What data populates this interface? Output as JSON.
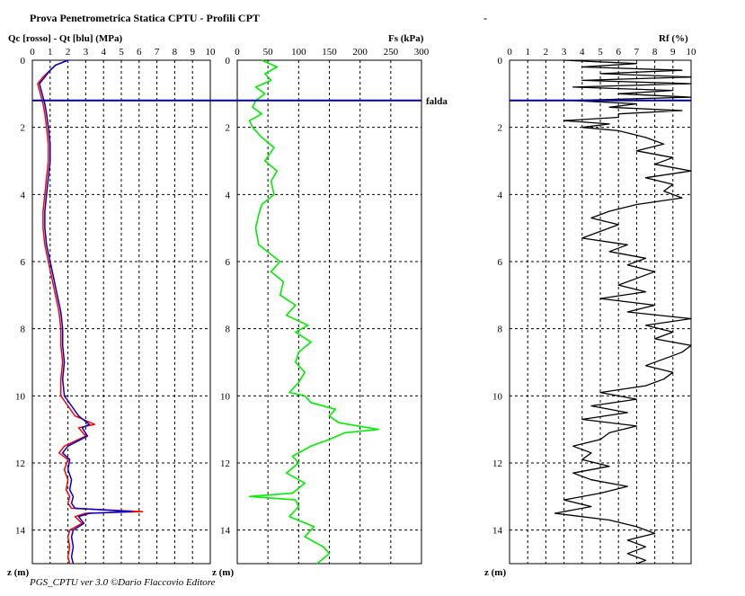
{
  "title": "Prova Penetrometrica Statica CPTU   - Profili CPT",
  "title_dash": "-",
  "footer": "PGS_CPTU ver 3.0 ©Dario Flaccovio Editore",
  "falda_label": "falda",
  "falda_depth": 1.2,
  "colors": {
    "qc": "#ff0000",
    "qt": "#0000cc",
    "fs": "#00ee00",
    "rf": "#000000",
    "falda": "#0000aa"
  },
  "chart_data": [
    {
      "type": "line",
      "title": "Qc [rosso] - Qt [blu] (MPa)",
      "xlabel": "Qc [rosso] - Qt [blu] (MPa)",
      "ylabel": "z (m)",
      "x_ticks": [
        "0",
        "1",
        "2",
        "3",
        "4",
        "5",
        "6",
        "7",
        "8",
        "9",
        "10"
      ],
      "y_ticks": [
        "0",
        "2",
        "4",
        "6",
        "8",
        "10",
        "12",
        "14"
      ],
      "xlim": [
        0,
        10
      ],
      "ylim": [
        15,
        0
      ],
      "grid": true,
      "series": [
        {
          "name": "Qc [rosso]",
          "depth": [
            0,
            0.15,
            0.3,
            0.5,
            0.7,
            0.9,
            1.1,
            1.3,
            1.6,
            2.0,
            2.5,
            3.0,
            3.5,
            4.0,
            4.5,
            5.0,
            5.5,
            6.0,
            6.5,
            7.0,
            7.5,
            8.0,
            8.5,
            9.0,
            9.5,
            10.0,
            10.3,
            10.6,
            10.85,
            10.95,
            11.2,
            11.5,
            11.7,
            11.9,
            12.2,
            12.5,
            12.8,
            13.0,
            13.2,
            13.35,
            13.45,
            13.5,
            13.6,
            13.8,
            14.0,
            14.2,
            14.5,
            14.8,
            15.0
          ],
          "values": [
            2.0,
            1.3,
            1.0,
            0.6,
            0.3,
            0.4,
            0.5,
            0.6,
            0.7,
            0.8,
            0.9,
            0.9,
            0.8,
            0.7,
            0.6,
            0.6,
            0.7,
            0.9,
            1.1,
            1.3,
            1.5,
            1.6,
            1.6,
            1.7,
            1.6,
            1.6,
            2.0,
            2.4,
            3.5,
            2.6,
            3.0,
            1.8,
            1.5,
            2.0,
            1.8,
            2.0,
            1.9,
            2.1,
            2.0,
            2.2,
            6.2,
            3.0,
            2.4,
            2.8,
            2.1,
            2.0,
            2.1,
            2.0,
            2.1
          ]
        },
        {
          "name": "Qt [blu]",
          "depth": [
            0,
            0.15,
            0.3,
            0.5,
            0.7,
            0.9,
            1.1,
            1.3,
            1.6,
            2.0,
            2.5,
            3.0,
            3.5,
            4.0,
            4.5,
            5.0,
            5.5,
            6.0,
            6.5,
            7.0,
            7.5,
            8.0,
            8.5,
            9.0,
            9.5,
            10.0,
            10.3,
            10.6,
            10.85,
            10.95,
            11.2,
            11.5,
            11.7,
            11.9,
            12.2,
            12.5,
            12.8,
            13.0,
            13.2,
            13.35,
            13.45,
            13.5,
            13.6,
            13.8,
            14.0,
            14.2,
            14.5,
            14.8,
            15.0
          ],
          "values": [
            2.0,
            1.3,
            1.0,
            0.7,
            0.4,
            0.5,
            0.6,
            0.7,
            0.8,
            0.9,
            1.0,
            1.0,
            0.9,
            0.8,
            0.7,
            0.7,
            0.8,
            1.0,
            1.2,
            1.4,
            1.6,
            1.7,
            1.7,
            1.8,
            1.7,
            1.8,
            2.2,
            2.6,
            3.2,
            2.8,
            3.1,
            2.0,
            1.7,
            2.1,
            2.0,
            2.2,
            2.1,
            2.3,
            2.2,
            2.4,
            5.6,
            3.2,
            2.6,
            2.9,
            2.3,
            2.2,
            2.3,
            2.2,
            2.3
          ]
        }
      ]
    },
    {
      "type": "line",
      "title": "Fs (kPa)",
      "xlabel": "Fs (kPa)",
      "ylabel": "z (m)",
      "x_ticks": [
        "0",
        "50",
        "100",
        "150",
        "200",
        "250",
        "300"
      ],
      "y_ticks": [
        "0",
        "2",
        "4",
        "6",
        "8",
        "10",
        "12",
        "14"
      ],
      "xlim": [
        0,
        300
      ],
      "ylim": [
        15,
        0
      ],
      "grid": true,
      "series": [
        {
          "name": "Fs",
          "depth": [
            0,
            0.2,
            0.4,
            0.6,
            0.8,
            1.0,
            1.2,
            1.4,
            1.6,
            1.8,
            2.0,
            2.3,
            2.6,
            3.0,
            3.3,
            3.6,
            4.0,
            4.3,
            4.6,
            5.0,
            5.5,
            6.0,
            6.3,
            6.6,
            7.0,
            7.3,
            7.6,
            7.9,
            8.1,
            8.4,
            8.7,
            9.0,
            9.3,
            9.6,
            9.9,
            10.0,
            10.2,
            10.4,
            10.6,
            10.8,
            11.0,
            11.1,
            11.3,
            11.5,
            11.8,
            12.0,
            12.3,
            12.6,
            12.9,
            13.0,
            13.1,
            13.3,
            13.6,
            13.9,
            14.2,
            14.5,
            14.7,
            15.0
          ],
          "values": [
            40,
            65,
            45,
            55,
            30,
            45,
            30,
            25,
            40,
            20,
            25,
            40,
            60,
            45,
            65,
            55,
            60,
            40,
            35,
            30,
            35,
            70,
            55,
            75,
            70,
            95,
            80,
            115,
            95,
            120,
            100,
            95,
            110,
            100,
            85,
            110,
            120,
            160,
            150,
            165,
            230,
            175,
            150,
            120,
            90,
            100,
            80,
            110,
            90,
            20,
            95,
            100,
            85,
            125,
            110,
            140,
            150,
            130
          ]
        }
      ]
    },
    {
      "type": "line",
      "title": "Rf (%)",
      "xlabel": "Rf (%)",
      "ylabel": "z (m)",
      "x_ticks": [
        "0",
        "1",
        "2",
        "3",
        "4",
        "5",
        "6",
        "7",
        "8",
        "9",
        "10"
      ],
      "y_ticks": [
        "0",
        "2",
        "4",
        "6",
        "8",
        "10",
        "12",
        "14"
      ],
      "xlim": [
        0,
        10
      ],
      "ylim": [
        15,
        0
      ],
      "grid": true,
      "series": [
        {
          "name": "Rf",
          "depth": [
            0,
            0.1,
            0.2,
            0.3,
            0.4,
            0.5,
            0.6,
            0.7,
            0.8,
            0.9,
            1.0,
            1.1,
            1.2,
            1.3,
            1.4,
            1.5,
            1.6,
            1.7,
            1.8,
            1.9,
            2.0,
            2.1,
            2.3,
            2.5,
            2.7,
            2.9,
            3.1,
            3.3,
            3.5,
            3.7,
            3.9,
            4.1,
            4.3,
            4.5,
            4.7,
            4.9,
            5.1,
            5.3,
            5.5,
            5.7,
            5.9,
            6.1,
            6.3,
            6.5,
            6.7,
            6.9,
            7.1,
            7.3,
            7.5,
            7.7,
            7.9,
            8.1,
            8.3,
            8.5,
            8.7,
            8.9,
            9.1,
            9.3,
            9.5,
            9.7,
            9.9,
            10.1,
            10.3,
            10.5,
            10.7,
            10.9,
            11.1,
            11.3,
            11.5,
            11.7,
            11.9,
            12.1,
            12.3,
            12.5,
            12.7,
            12.9,
            13.1,
            13.3,
            13.5,
            13.7,
            13.9,
            14.1,
            14.3,
            14.5,
            14.7,
            14.9,
            15.0
          ],
          "values": [
            3.0,
            7.0,
            4.0,
            9.5,
            5.0,
            10.0,
            4.0,
            10.0,
            3.5,
            9.0,
            6.0,
            10.0,
            3.5,
            7.0,
            5.5,
            9.5,
            6.0,
            6.0,
            3.0,
            5.5,
            4.0,
            6.0,
            7.5,
            8.5,
            7.0,
            9.0,
            8.0,
            10.0,
            7.5,
            9.0,
            8.5,
            9.5,
            7.0,
            5.5,
            4.5,
            6.0,
            5.0,
            4.0,
            6.5,
            5.5,
            7.5,
            6.5,
            8.0,
            7.0,
            6.0,
            7.5,
            5.0,
            8.0,
            6.5,
            10.0,
            7.5,
            9.0,
            8.0,
            10.0,
            9.5,
            8.5,
            7.5,
            9.0,
            8.5,
            7.5,
            5.0,
            7.0,
            4.5,
            6.5,
            4.0,
            7.0,
            5.5,
            5.0,
            3.5,
            4.5,
            4.0,
            5.5,
            3.5,
            4.5,
            6.5,
            5.0,
            3.0,
            4.5,
            2.5,
            5.5,
            7.0,
            8.0,
            6.5,
            7.5,
            6.5,
            7.5,
            7.0
          ]
        }
      ]
    }
  ]
}
